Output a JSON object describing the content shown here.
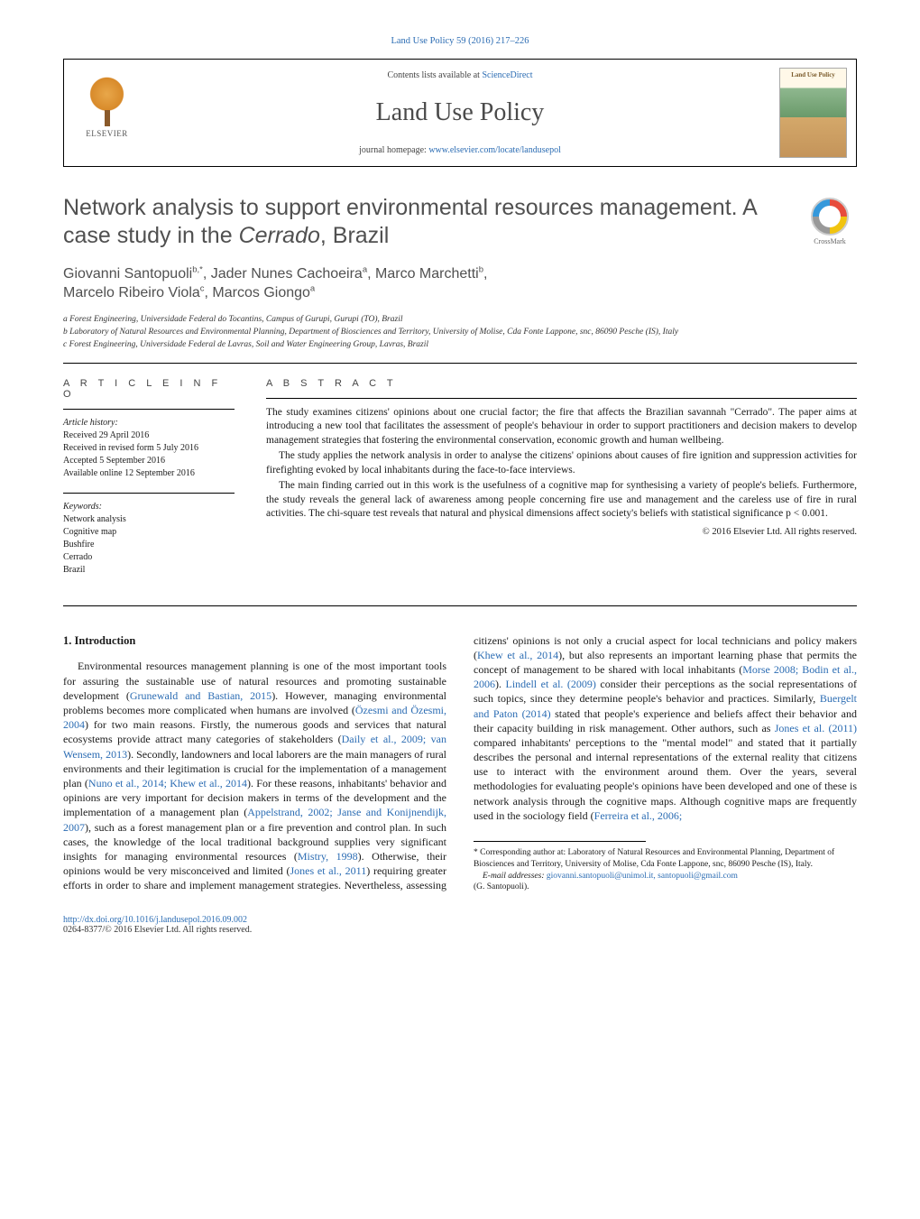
{
  "top_citation": "Land Use Policy 59 (2016) 217–226",
  "header": {
    "contents_prefix": "Contents lists available at ",
    "contents_link": "ScienceDirect",
    "journal_name": "Land Use Policy",
    "homepage_prefix": "journal homepage: ",
    "homepage_url": "www.elsevier.com/locate/landusepol",
    "publisher_name": "ELSEVIER",
    "cover_title": "Land Use Policy"
  },
  "crossmark_label": "CrossMark",
  "title_part1": "Network analysis to support environmental resources management. A case study in the ",
  "title_italic": "Cerrado",
  "title_part2": ", Brazil",
  "authors_html": "Giovanni Santopuoli<sup>b,*</sup>, Jader Nunes Cachoeira<sup>a</sup>, Marco Marchetti<sup>b</sup>, <br>Marcelo Ribeiro Viola<sup>c</sup>, Marcos Giongo<sup>a</sup>",
  "affiliations": [
    "a Forest Engineering, Universidade Federal do Tocantins, Campus of Gurupi, Gurupi (TO), Brazil",
    "b Laboratory of Natural Resources and Environmental Planning, Department of Biosciences and Territory, University of Molise, Cda Fonte Lappone, snc, 86090 Pesche (IS), Italy",
    "c Forest Engineering, Universidade Federal de Lavras, Soil and Water Engineering Group, Lavras, Brazil"
  ],
  "info": {
    "heading": "A R T I C L E  I N F O",
    "history_label": "Article history:",
    "history": [
      "Received 29 April 2016",
      "Received in revised form 5 July 2016",
      "Accepted 5 September 2016",
      "Available online 12 September 2016"
    ],
    "keywords_label": "Keywords:",
    "keywords": [
      "Network analysis",
      "Cognitive map",
      "Bushfire",
      "Cerrado",
      "Brazil"
    ]
  },
  "abstract": {
    "heading": "A B S T R A C T",
    "paragraphs": [
      "The study examines citizens' opinions about one crucial factor; the fire that affects the Brazilian savannah \"Cerrado\". The paper aims at introducing a new tool that facilitates the assessment of people's behaviour in order to support practitioners and decision makers to develop management strategies that fostering the environmental conservation, economic growth and human wellbeing.",
      "The study applies the network analysis in order to analyse the citizens' opinions about causes of fire ignition and suppression activities for firefighting evoked by local inhabitants during the face-to-face interviews.",
      "The main finding carried out in this work is the usefulness of a cognitive map for synthesising a variety of people's beliefs. Furthermore, the study reveals the general lack of awareness among people concerning fire use and management and the careless use of fire in rural activities. The chi-square test reveals that natural and physical dimensions affect society's beliefs with statistical significance p < 0.001."
    ],
    "copyright": "© 2016 Elsevier Ltd. All rights reserved."
  },
  "section_heading": "1. Introduction",
  "body_html": "Environmental resources management planning is one of the most important tools for assuring the sustainable use of natural resources and promoting sustainable development (<span class=\"cite-link\">Grunewald and Bastian, 2015</span>). However, managing environmental problems becomes more complicated when humans are involved (<span class=\"cite-link\">Özesmi and Özesmi, 2004</span>) for two main reasons. Firstly, the numerous goods and services that natural ecosystems provide attract many categories of stakeholders (<span class=\"cite-link\">Daily et al., 2009; van Wensem, 2013</span>). Secondly, landowners and local laborers are the main managers of rural environments and their legitimation is crucial for the implementation of a management plan (<span class=\"cite-link\">Nuno et al., 2014; Khew et al., 2014</span>). For these reasons, inhabitants' behavior and opinions are very important for decision makers in terms of the development and the implementation of a management plan (<span class=\"cite-link\">Appelstrand, 2002;</span> <span class=\"cite-link\">Janse and Konijnendijk, 2007</span>), such as a forest management plan or a fire prevention and control plan. In such cases, the knowledge of the local traditional background supplies very significant insights for managing environmental resources (<span class=\"cite-link\">Mistry, 1998</span>). Otherwise, their opinions would be very misconceived and limited (<span class=\"cite-link\">Jones et al., 2011</span>) requiring greater efforts in order to share and implement management strategies. Nevertheless, assessing citizens' opinions is not only a crucial aspect for local technicians and policy makers (<span class=\"cite-link\">Khew et al., 2014</span>), but also represents an important learning phase that permits the concept of management to be shared with local inhabitants (<span class=\"cite-link\">Morse 2008; Bodin et al., 2006</span>). <span class=\"cite-link\">Lindell et al. (2009)</span> consider their perceptions as the social representations of such topics, since they determine people's behavior and practices. Similarly, <span class=\"cite-link\">Buergelt and Paton (2014)</span> stated that people's experience and beliefs affect their behavior and their capacity building in risk management. Other authors, such as <span class=\"cite-link\">Jones et al. (2011)</span> compared inhabitants' perceptions to the \"mental model\" and stated that it partially describes the personal and internal representations of the external reality that citizens use to interact with the environment around them. Over the years, several methodologies for evaluating people's opinions have been developed and one of these is network analysis through the cognitive maps. Although cognitive maps are frequently used in the sociology field (<span class=\"cite-link\">Ferreira et al., 2006;</span>",
  "footnotes": {
    "corr_label": "* Corresponding author at: Laboratory of Natural Resources and Environmental Planning, Department of Biosciences and Territory, University of Molise, Cda Fonte Lappone, snc, 86090 Pesche (IS), Italy.",
    "email_label": "E-mail addresses: ",
    "emails": "giovanni.santopuoli@unimol.it, santopuoli@gmail.com",
    "email_owner": "(G. Santopuoli)."
  },
  "footer": {
    "doi": "http://dx.doi.org/10.1016/j.landusepol.2016.09.002",
    "issn_line": "0264-8377/© 2016 Elsevier Ltd. All rights reserved."
  },
  "colors": {
    "link": "#2b6cb3",
    "text": "#1a1a1a",
    "heading_gray": "#505050",
    "background": "#ffffff"
  },
  "fonts": {
    "body_family": "Georgia, 'Times New Roman', serif",
    "heading_family": "'Trebuchet MS', Arial, sans-serif",
    "body_size_pt": 12,
    "title_size_pt": 25,
    "authors_size_pt": 16,
    "abstract_size_pt": 11.5,
    "info_size_pt": 10,
    "affil_size_pt": 9.5
  }
}
